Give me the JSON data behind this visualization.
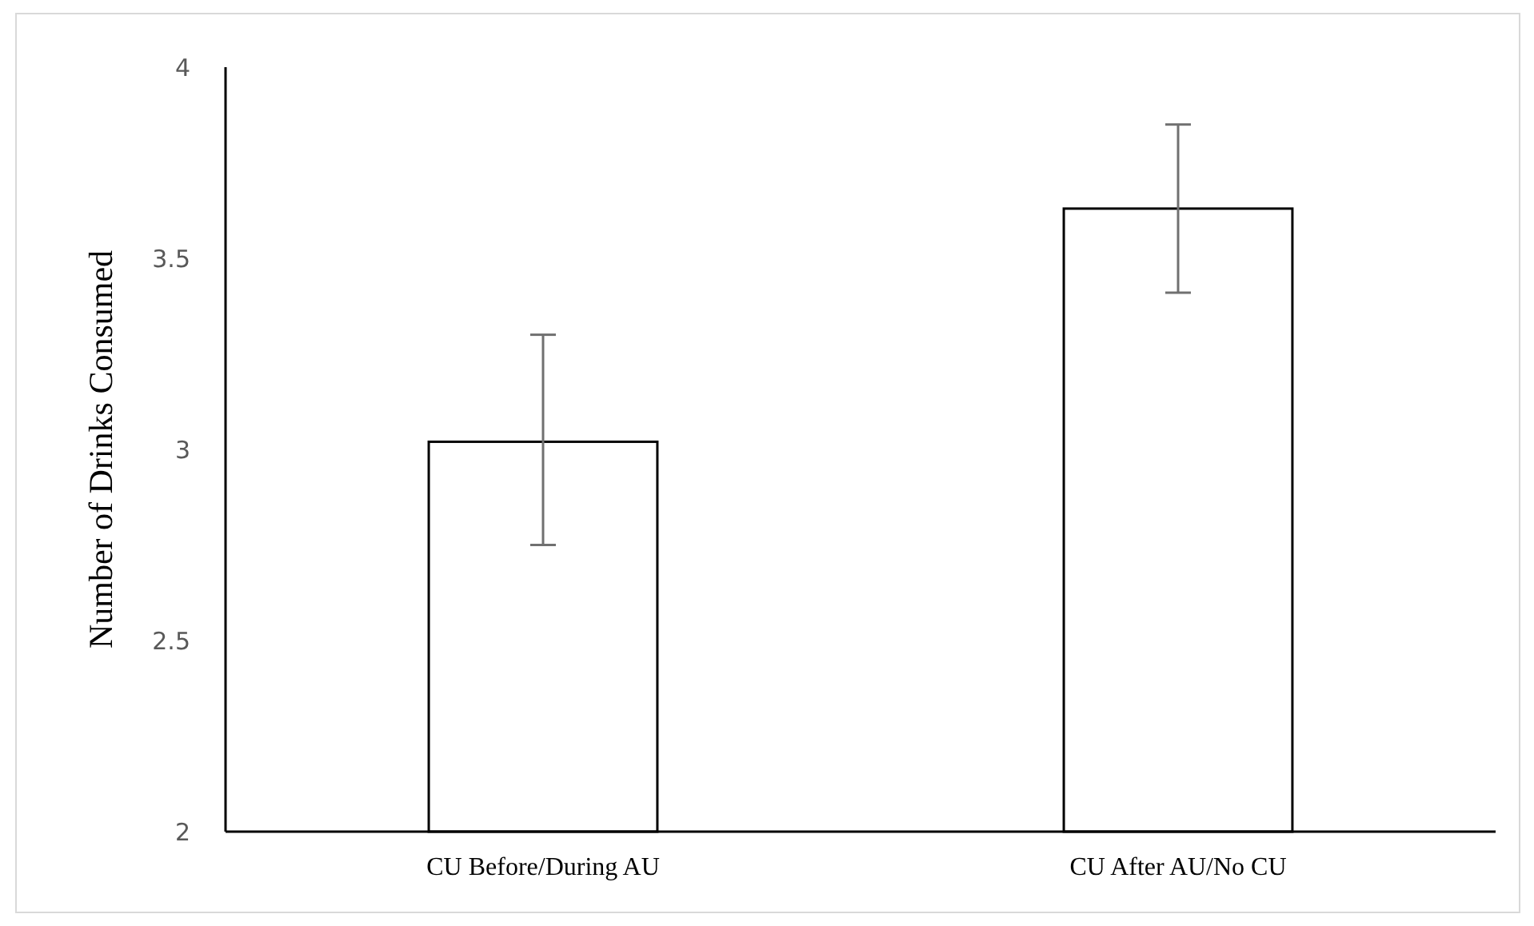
{
  "chart_data": {
    "type": "bar",
    "ylabel": "Number of Drinks Consumed",
    "categories": [
      "CU Before/During AU",
      "CU After AU/No CU"
    ],
    "values": [
      3.02,
      3.63
    ],
    "errors": [
      [
        2.75,
        3.3
      ],
      [
        3.41,
        3.85
      ]
    ],
    "color": "#ffffff",
    "ylim": [
      2,
      4
    ],
    "yticks": [
      2,
      2.5,
      3,
      3.5,
      4
    ],
    "grid": false
  }
}
